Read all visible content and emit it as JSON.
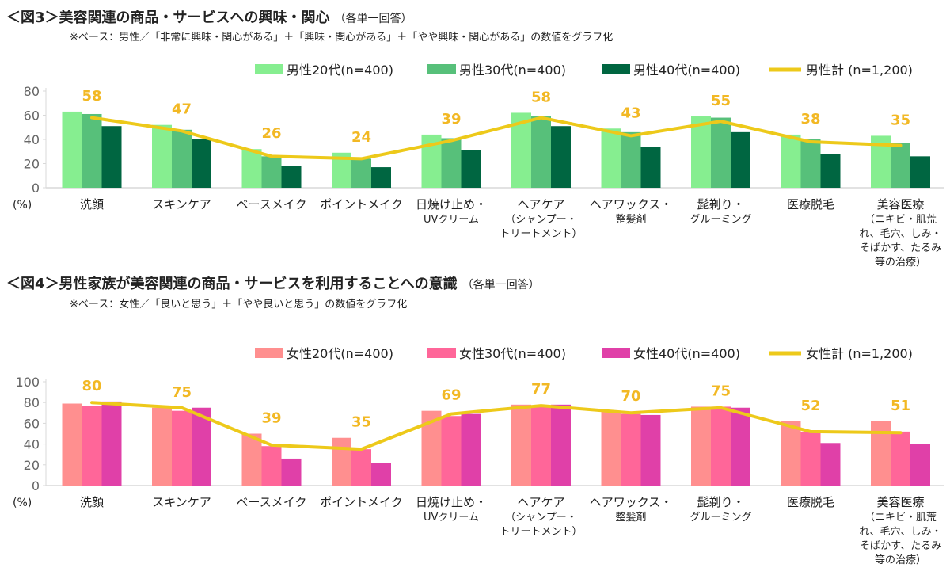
{
  "charts_text": [
    {
      "title": "＜図3＞美容関連の商品・サービスへの興味・関心",
      "note": "（各単一回答）",
      "subtitle": "※ベース：男性／「非常に興味・関心がある」＋「興味・関心がある」＋「やや興味・関心がある」の数値をグラフ化"
    },
    {
      "title": "＜図4＞男性家族が美容関連の商品・サービスを利用することへの意識",
      "note": "（各単一回答）",
      "subtitle": "※ベース：女性／「良いと思う」＋「やや良いと思う」の数値をグラフ化"
    }
  ],
  "chart_data": [
    {
      "type": "bar",
      "ylabel": "(%)",
      "ylim": [
        0,
        80
      ],
      "yticks": [
        0,
        20,
        40,
        60,
        80
      ],
      "legend": "top-right",
      "categories": [
        [
          "洗顔"
        ],
        [
          "スキンケア"
        ],
        [
          "ベースメイク"
        ],
        [
          "ポイントメイク"
        ],
        [
          "日焼け止め・",
          "UVクリーム"
        ],
        [
          "ヘアケア",
          "（シャンプー・",
          "トリートメント）"
        ],
        [
          "ヘアワックス・",
          "整髪剤"
        ],
        [
          "髭剃り・",
          "グルーミング"
        ],
        [
          "医療脱毛"
        ],
        [
          "美容医療",
          "（ニキビ・肌荒",
          "れ、毛穴、しみ・",
          "そばかす、たるみ",
          "等の治療）"
        ]
      ],
      "series": [
        {
          "name": "男性20代(n=400)",
          "color": "#86EE90",
          "values": [
            63,
            52,
            32,
            29,
            44,
            62,
            49,
            59,
            44,
            43
          ]
        },
        {
          "name": "男性30代(n=400)",
          "color": "#57C07A",
          "values": [
            61,
            48,
            26,
            24,
            41,
            59,
            46,
            58,
            40,
            37
          ]
        },
        {
          "name": "男性40代(n=400)",
          "color": "#006641",
          "values": [
            51,
            40,
            18,
            17,
            31,
            51,
            34,
            46,
            28,
            26
          ]
        }
      ],
      "line": {
        "name": "男性計 (n=1,200)",
        "color": "#EDC91A",
        "label_color": "#F2B824",
        "values": [
          58,
          47,
          26,
          24,
          39,
          58,
          43,
          55,
          38,
          35
        ]
      }
    },
    {
      "type": "bar",
      "ylabel": "(%)",
      "ylim": [
        0,
        100
      ],
      "yticks": [
        0,
        20,
        40,
        60,
        80,
        100
      ],
      "legend": "top-right",
      "categories": [
        [
          "洗顔"
        ],
        [
          "スキンケア"
        ],
        [
          "ベースメイク"
        ],
        [
          "ポイントメイク"
        ],
        [
          "日焼け止め・",
          "UVクリーム"
        ],
        [
          "ヘアケア",
          "（シャンプー・",
          "トリートメント）"
        ],
        [
          "ヘアワックス・",
          "整髪剤"
        ],
        [
          "髭剃り・",
          "グルーミング"
        ],
        [
          "医療脱毛"
        ],
        [
          "美容医療",
          "（ニキビ・肌荒",
          "れ、毛穴、しみ・",
          "そばかす、たるみ",
          "等の治療）"
        ]
      ],
      "series": [
        {
          "name": "女性20代(n=400)",
          "color": "#FF8F8F",
          "values": [
            79,
            75,
            50,
            46,
            72,
            78,
            71,
            76,
            62,
            62
          ]
        },
        {
          "name": "女性30代(n=400)",
          "color": "#FF6699",
          "values": [
            77,
            72,
            38,
            35,
            67,
            77,
            69,
            76,
            52,
            52
          ]
        },
        {
          "name": "女性40代(n=400)",
          "color": "#E040A8",
          "values": [
            81,
            75,
            26,
            22,
            69,
            78,
            68,
            75,
            41,
            40
          ]
        }
      ],
      "line": {
        "name": "女性計 (n=1,200)",
        "color": "#EDC91A",
        "label_color": "#F2B824",
        "values": [
          80,
          75,
          39,
          35,
          69,
          77,
          70,
          75,
          52,
          51
        ]
      }
    }
  ]
}
